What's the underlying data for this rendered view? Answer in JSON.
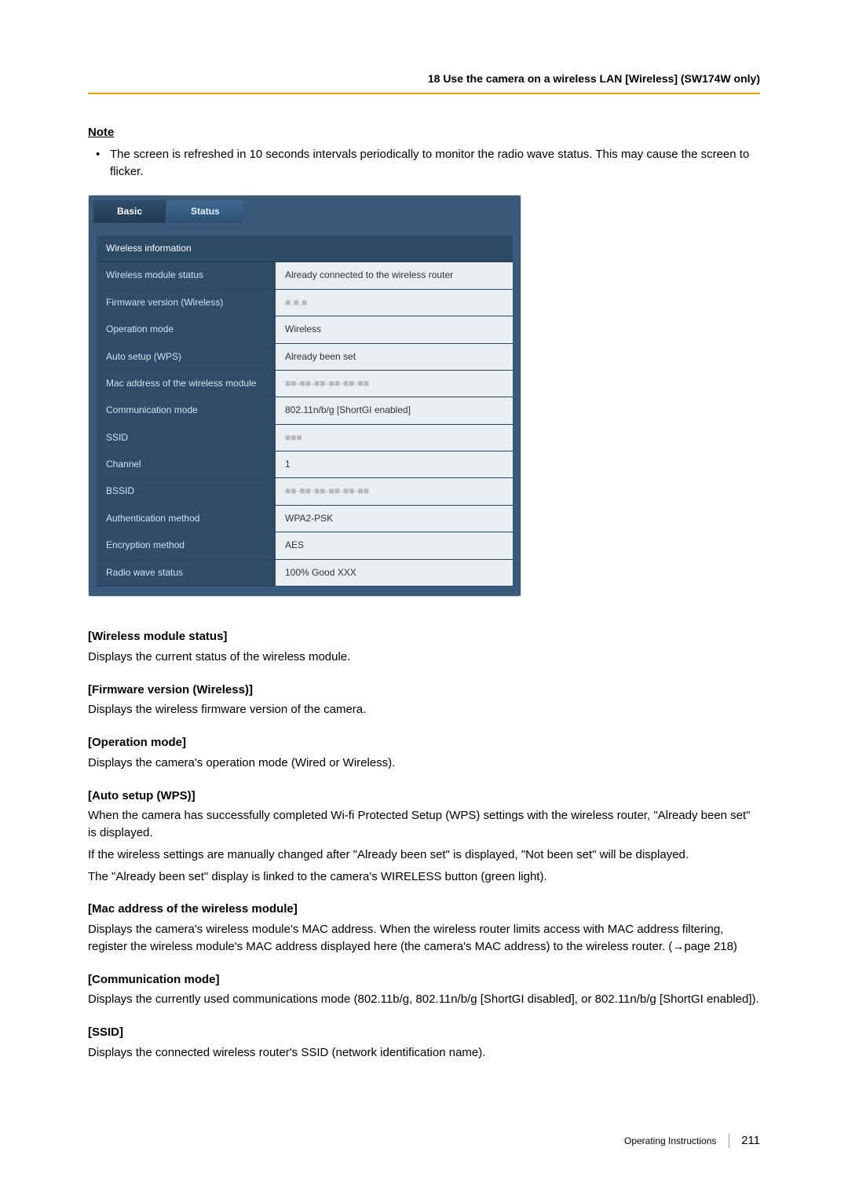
{
  "header": {
    "text": "18 Use the camera on a wireless LAN [Wireless] (SW174W only)",
    "rule_color": "#f49b00"
  },
  "note": {
    "heading": "Note",
    "bullet": "The screen is refreshed in 10 seconds intervals periodically to monitor the radio wave status. This may cause the screen to flicker."
  },
  "panel": {
    "tabs": {
      "basic": "Basic",
      "status": "Status"
    },
    "section_header": "Wireless information",
    "rows": [
      {
        "label": "Wireless module status",
        "value": "Already connected to the wireless router",
        "greyed": false
      },
      {
        "label": "Firmware version (Wireless)",
        "value": "■.■.■",
        "greyed": true
      },
      {
        "label": "Operation mode",
        "value": "Wireless",
        "greyed": false
      },
      {
        "label": "Auto setup (WPS)",
        "value": "Already been set",
        "greyed": false
      },
      {
        "label": "Mac address of the wireless module",
        "value": "■■-■■-■■-■■-■■-■■",
        "greyed": true
      },
      {
        "label": "Communication mode",
        "value": "802.11n/b/g [ShortGI enabled]",
        "greyed": false
      },
      {
        "label": "SSID",
        "value": "■■■",
        "greyed": true
      },
      {
        "label": "Channel",
        "value": "1",
        "greyed": false
      },
      {
        "label": "BSSID",
        "value": "■■-■■-■■-■■-■■-■■",
        "greyed": true
      },
      {
        "label": "Authentication method",
        "value": "WPA2-PSK",
        "greyed": false
      },
      {
        "label": "Encryption method",
        "value": "AES",
        "greyed": false
      },
      {
        "label": "Radio wave status",
        "value": "100%   Good    XXX",
        "greyed": false
      }
    ],
    "colors": {
      "header_bg": "#3a5a7a",
      "section_bg": "#2d4a67",
      "label_bg": "#304c69",
      "label_fg": "#cfe2f0",
      "value_bg": "#e9eef2",
      "value_fg": "#333333"
    }
  },
  "sections": [
    {
      "title": "[Wireless module status]",
      "text": "Displays the current status of the wireless module."
    },
    {
      "title": "[Firmware version (Wireless)]",
      "text": "Displays the wireless firmware version of the camera."
    },
    {
      "title": "[Operation mode]",
      "text": "Displays the camera's operation mode (Wired or Wireless)."
    },
    {
      "title": "[Auto setup (WPS)]",
      "text": "When the camera has successfully completed Wi-fi Protected Setup (WPS) settings with the wireless router, \"Already been set\" is displayed.\nIf the wireless settings are manually changed after \"Already been set\" is displayed, \"Not been set\" will be displayed.\nThe \"Already been set\" display is linked to the camera's WIRELESS button (green light)."
    },
    {
      "title": "[Mac address of the wireless module]",
      "text": "Displays the camera's wireless module's MAC address. When the wireless router limits access with MAC address filtering, register the wireless module's MAC address displayed here (the camera's MAC address) to the wireless router. (→page 218)"
    },
    {
      "title": "[Communication mode]",
      "text": "Displays the currently used communications mode (802.11b/g, 802.11n/b/g [ShortGI disabled], or 802.11n/b/g [ShortGI enabled])."
    },
    {
      "title": "[SSID]",
      "text": "Displays the connected wireless router's SSID (network identification name)."
    }
  ],
  "footer": {
    "label": "Operating Instructions",
    "page": "211"
  }
}
